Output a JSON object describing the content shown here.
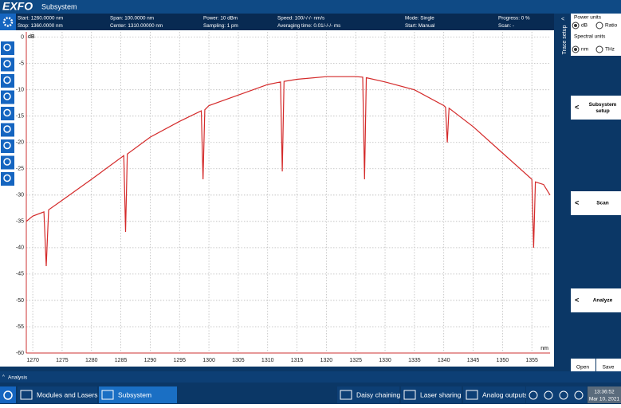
{
  "app": {
    "logo": "EXFO",
    "title": "Subsystem"
  },
  "status": {
    "items": [
      "Start: 1260.0000 nm",
      "Stop: 1360.0000 nm",
      "Span: 100.0000 nm",
      "Center: 1310.00000 nm",
      "Power: 10 dBm",
      "Sampling: 1 pm",
      "Speed: 100/-/-/- nm/s",
      "Averaging time: 0.01/-/-/- ms",
      "Mode: Single",
      "Start: Manual",
      "Progress: 0 %",
      "Scan: -"
    ]
  },
  "chart_data": {
    "type": "line",
    "y_label": "dB",
    "x_label": "nm",
    "color": "#d42a2a",
    "x": [
      1268.9,
      1270,
      1271.9,
      1272.3,
      1272.7,
      1275,
      1280,
      1285.5,
      1285.8,
      1286.1,
      1290,
      1295,
      1298.7,
      1299,
      1299.3,
      1300,
      1305,
      1310,
      1312.2,
      1312.5,
      1312.8,
      1315,
      1320,
      1325,
      1326.2,
      1326.5,
      1326.8,
      1330,
      1335,
      1340,
      1340.3,
      1340.6,
      1340.9,
      1345,
      1350,
      1355,
      1355.3,
      1355.6,
      1357,
      1358.1
    ],
    "values": [
      -35,
      -34,
      -33.2,
      -43.5,
      -32.8,
      -31,
      -27,
      -22.5,
      -37,
      -22.2,
      -19,
      -16,
      -14,
      -27,
      -13.8,
      -13,
      -11,
      -9,
      -8.5,
      -25.5,
      -8.4,
      -8,
      -7.5,
      -7.5,
      -7.6,
      -27,
      -7.7,
      -8.5,
      -10,
      -13,
      -13.3,
      -20,
      -13.5,
      -17,
      -22,
      -27,
      -40,
      -27.5,
      -28,
      -30
    ],
    "xlim": [
      1268.9,
      1358.1
    ],
    "ylim": [
      -60,
      1
    ],
    "xticks": [
      1270,
      1275,
      1280,
      1285,
      1290,
      1295,
      1300,
      1305,
      1310,
      1315,
      1320,
      1325,
      1330,
      1335,
      1340,
      1345,
      1350,
      1355
    ],
    "yticks": [
      0,
      -5,
      -10,
      -15,
      -20,
      -25,
      -30,
      -35,
      -40,
      -45,
      -50,
      -55,
      -60
    ],
    "grid": true
  },
  "side_panel": {
    "tab": "Trace setup",
    "power_units": {
      "label": "Power units",
      "options": [
        "dB",
        "Ratio"
      ],
      "selected": "dB"
    },
    "spectral_units": {
      "label": "Spectral units",
      "options": [
        "nm",
        "THz"
      ],
      "selected": "nm"
    },
    "buttons": [
      "Subsystem setup",
      "Scan",
      "Analyze"
    ],
    "open": "Open",
    "save": "Save"
  },
  "analysis_bar": "Analysis",
  "taskbar": {
    "items": [
      "Modules and Lasers",
      "Subsystem",
      "Daisy chaining",
      "Laser sharing",
      "Analog outputs"
    ],
    "time": "13:36:52",
    "date": "Mar 10, 2021"
  }
}
